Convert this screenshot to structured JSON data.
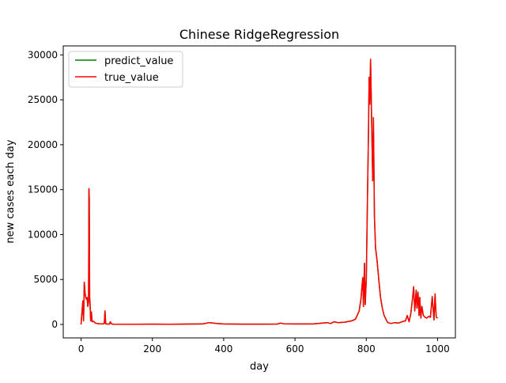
{
  "chart_data": {
    "type": "line",
    "title": "Chinese RidgeRegression",
    "xlabel": "day",
    "ylabel": "new cases each day",
    "xlim": [
      -50,
      1050
    ],
    "ylim": [
      -1500,
      31000
    ],
    "xticks": [
      0,
      200,
      400,
      600,
      800,
      1000
    ],
    "yticks": [
      0,
      5000,
      10000,
      15000,
      20000,
      25000,
      30000
    ],
    "grid": false,
    "legend_position": "top-left",
    "series": [
      {
        "name": "predict_value",
        "color": "#008000",
        "x": [
          0,
          5,
          7,
          9,
          11,
          13,
          15,
          17,
          19,
          21,
          22,
          23,
          24,
          25,
          27,
          29,
          31,
          35,
          40,
          45,
          50,
          60,
          65,
          67,
          69,
          71,
          75,
          80,
          82,
          85,
          90,
          100,
          150,
          200,
          250,
          300,
          340,
          360,
          370,
          380,
          400,
          450,
          500,
          550,
          560,
          570,
          600,
          650,
          690,
          700,
          710,
          720,
          740,
          760,
          770,
          780,
          785,
          790,
          792,
          795,
          797,
          800,
          803,
          806,
          808,
          810,
          812,
          815,
          818,
          820,
          823,
          826,
          830,
          835,
          840,
          845,
          850,
          860,
          870,
          880,
          890,
          900,
          910,
          915,
          920,
          925,
          930,
          933,
          936,
          940,
          942,
          945,
          948,
          950,
          953,
          956,
          960,
          965,
          970,
          975,
          980,
          985,
          990,
          993,
          996,
          1000
        ],
        "y": [
          0,
          2600,
          400,
          4700,
          3600,
          3000,
          2800,
          3000,
          2000,
          2500,
          15100,
          14000,
          3000,
          2500,
          400,
          1400,
          300,
          350,
          150,
          100,
          80,
          50,
          100,
          1500,
          60,
          50,
          40,
          40,
          300,
          60,
          30,
          20,
          20,
          30,
          20,
          40,
          50,
          200,
          150,
          100,
          50,
          30,
          30,
          40,
          150,
          60,
          50,
          50,
          200,
          100,
          300,
          200,
          250,
          400,
          600,
          1500,
          2800,
          5200,
          2000,
          6800,
          2200,
          5000,
          13000,
          21000,
          27500,
          24500,
          29500,
          23000,
          16000,
          23000,
          12000,
          8500,
          7200,
          5000,
          3000,
          1800,
          1000,
          200,
          100,
          200,
          150,
          300,
          400,
          1000,
          300,
          1200,
          3000,
          4200,
          1500,
          3800,
          1800,
          3600,
          1000,
          3000,
          700,
          2000,
          1000,
          800,
          700,
          900,
          800,
          3100,
          500,
          3400,
          800,
          700
        ]
      },
      {
        "name": "true_value",
        "color": "#ff0000",
        "x": [
          0,
          5,
          7,
          9,
          11,
          13,
          15,
          17,
          19,
          21,
          22,
          23,
          24,
          25,
          27,
          29,
          31,
          35,
          40,
          45,
          50,
          60,
          65,
          67,
          69,
          71,
          75,
          80,
          82,
          85,
          90,
          100,
          150,
          200,
          250,
          300,
          340,
          360,
          370,
          380,
          400,
          450,
          500,
          550,
          560,
          570,
          600,
          650,
          690,
          700,
          710,
          720,
          740,
          760,
          770,
          780,
          785,
          790,
          792,
          795,
          797,
          800,
          803,
          806,
          808,
          810,
          812,
          815,
          818,
          820,
          823,
          826,
          830,
          835,
          840,
          845,
          850,
          860,
          870,
          880,
          890,
          900,
          910,
          915,
          920,
          925,
          930,
          933,
          936,
          940,
          942,
          945,
          948,
          950,
          953,
          956,
          960,
          965,
          970,
          975,
          980,
          985,
          990,
          993,
          996,
          1000
        ],
        "y": [
          0,
          2600,
          400,
          4700,
          3600,
          3000,
          2800,
          3000,
          2000,
          2500,
          15100,
          14000,
          3000,
          2500,
          400,
          1400,
          300,
          350,
          150,
          100,
          80,
          50,
          100,
          1500,
          60,
          50,
          40,
          40,
          300,
          60,
          30,
          20,
          20,
          30,
          20,
          40,
          50,
          200,
          150,
          100,
          50,
          30,
          30,
          40,
          150,
          60,
          50,
          50,
          200,
          100,
          300,
          200,
          250,
          400,
          600,
          1500,
          2800,
          5200,
          2000,
          6800,
          2200,
          5000,
          13000,
          21000,
          27500,
          24500,
          29500,
          23000,
          16000,
          23000,
          12000,
          8500,
          7200,
          5000,
          3000,
          1800,
          1000,
          200,
          100,
          200,
          150,
          300,
          400,
          1000,
          300,
          1200,
          3000,
          4200,
          1500,
          3800,
          1800,
          3600,
          1000,
          3000,
          700,
          2000,
          1000,
          800,
          700,
          900,
          800,
          3100,
          500,
          3400,
          800,
          700
        ]
      }
    ]
  }
}
